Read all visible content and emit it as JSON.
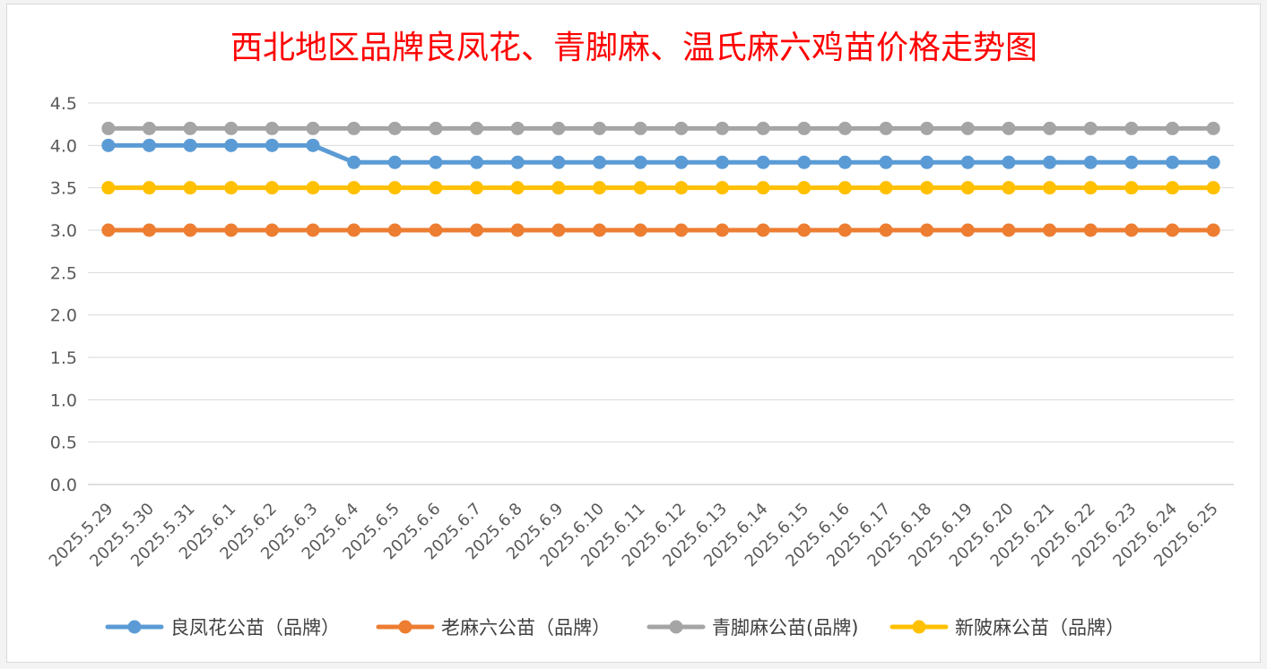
{
  "chart_data": {
    "type": "line",
    "title": "西北地区品牌良凤花、青脚麻、温氏麻六鸡苗价格走势图",
    "xlabel": "",
    "ylabel": "",
    "ylim": [
      0,
      4.5
    ],
    "y_ticks": [
      "0.0",
      "0.5",
      "1.0",
      "1.5",
      "2.0",
      "2.5",
      "3.0",
      "3.5",
      "4.0",
      "4.5"
    ],
    "grid": true,
    "legend_position": "bottom",
    "categories": [
      "2025.5.29",
      "2025.5.30",
      "2025.5.31",
      "2025.6.1",
      "2025.6.2",
      "2025.6.3",
      "2025.6.4",
      "2025.6.5",
      "2025.6.6",
      "2025.6.7",
      "2025.6.8",
      "2025.6.9",
      "2025.6.10",
      "2025.6.11",
      "2025.6.12",
      "2025.6.13",
      "2025.6.14",
      "2025.6.15",
      "2025.6.16",
      "2025.6.17",
      "2025.6.18",
      "2025.6.19",
      "2025.6.20",
      "2025.6.21",
      "2025.6.22",
      "2025.6.23",
      "2025.6.24",
      "2025.6.25"
    ],
    "series": [
      {
        "name": "良凤花公苗（品牌）",
        "color": "#5b9bd5",
        "values": [
          4.0,
          4.0,
          4.0,
          4.0,
          4.0,
          4.0,
          3.8,
          3.8,
          3.8,
          3.8,
          3.8,
          3.8,
          3.8,
          3.8,
          3.8,
          3.8,
          3.8,
          3.8,
          3.8,
          3.8,
          3.8,
          3.8,
          3.8,
          3.8,
          3.8,
          3.8,
          3.8,
          3.8
        ]
      },
      {
        "name": "老麻六公苗（品牌）",
        "color": "#ed7d31",
        "values": [
          3.0,
          3.0,
          3.0,
          3.0,
          3.0,
          3.0,
          3.0,
          3.0,
          3.0,
          3.0,
          3.0,
          3.0,
          3.0,
          3.0,
          3.0,
          3.0,
          3.0,
          3.0,
          3.0,
          3.0,
          3.0,
          3.0,
          3.0,
          3.0,
          3.0,
          3.0,
          3.0,
          3.0
        ]
      },
      {
        "name": "青脚麻公苗(品牌)",
        "color": "#a5a5a5",
        "values": [
          4.2,
          4.2,
          4.2,
          4.2,
          4.2,
          4.2,
          4.2,
          4.2,
          4.2,
          4.2,
          4.2,
          4.2,
          4.2,
          4.2,
          4.2,
          4.2,
          4.2,
          4.2,
          4.2,
          4.2,
          4.2,
          4.2,
          4.2,
          4.2,
          4.2,
          4.2,
          4.2,
          4.2
        ]
      },
      {
        "name": "新陂麻公苗（品牌）",
        "color": "#ffc000",
        "values": [
          3.5,
          3.5,
          3.5,
          3.5,
          3.5,
          3.5,
          3.5,
          3.5,
          3.5,
          3.5,
          3.5,
          3.5,
          3.5,
          3.5,
          3.5,
          3.5,
          3.5,
          3.5,
          3.5,
          3.5,
          3.5,
          3.5,
          3.5,
          3.5,
          3.5,
          3.5,
          3.5,
          3.5
        ]
      }
    ]
  }
}
